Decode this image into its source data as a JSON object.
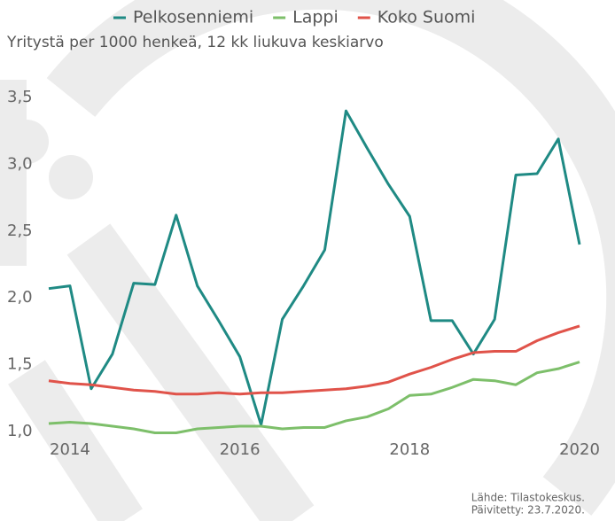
{
  "chart_data": {
    "type": "line",
    "subtitle": "Yritystä per 1000 henkeä, 12 kk liukuva keskiarvo",
    "source": [
      "Lähde: Tilastokeskus.",
      "Päivitetty: 23.7.2020."
    ],
    "x": [
      2013.75,
      2014,
      2014.25,
      2014.5,
      2014.75,
      2015,
      2015.25,
      2015.5,
      2015.75,
      2016,
      2016.25,
      2016.5,
      2016.75,
      2017,
      2017.25,
      2017.5,
      2017.75,
      2018,
      2018.25,
      2018.5,
      2018.75,
      2019,
      2019.25,
      2019.5,
      2019.75,
      2020
    ],
    "series": [
      {
        "name": "Pelkosenniemi",
        "color": "#1f8a84",
        "values": [
          2.07,
          2.09,
          1.32,
          1.58,
          2.11,
          2.1,
          2.62,
          2.09,
          1.83,
          1.56,
          1.05,
          1.84,
          2.09,
          2.36,
          3.4,
          3.12,
          2.85,
          2.61,
          1.83,
          1.83,
          1.58,
          1.84,
          2.92,
          2.93,
          3.19,
          2.4
        ]
      },
      {
        "name": "Lappi",
        "color": "#7dbf6a",
        "values": [
          1.06,
          1.07,
          1.06,
          1.04,
          1.02,
          0.99,
          0.99,
          1.02,
          1.03,
          1.04,
          1.04,
          1.02,
          1.03,
          1.03,
          1.08,
          1.11,
          1.17,
          1.27,
          1.28,
          1.33,
          1.39,
          1.38,
          1.35,
          1.44,
          1.47,
          1.52
        ]
      },
      {
        "name": "Koko Suomi",
        "color": "#e0534a",
        "values": [
          1.38,
          1.36,
          1.35,
          1.33,
          1.31,
          1.3,
          1.28,
          1.28,
          1.29,
          1.28,
          1.29,
          1.29,
          1.3,
          1.31,
          1.32,
          1.34,
          1.37,
          1.43,
          1.48,
          1.54,
          1.59,
          1.6,
          1.6,
          1.68,
          1.74,
          1.79
        ]
      }
    ],
    "xlim": [
      2013.75,
      2020
    ],
    "xticks": [
      2014,
      2016,
      2018,
      2020
    ],
    "ylim": [
      1.0,
      3.6
    ],
    "yticks": [
      {
        "value": 1.0,
        "label": "1,0"
      },
      {
        "value": 1.5,
        "label": "1,5"
      },
      {
        "value": 2.0,
        "label": "2,0"
      },
      {
        "value": 2.5,
        "label": "2,5"
      },
      {
        "value": 3.0,
        "label": "3,0"
      },
      {
        "value": 3.5,
        "label": "3,5"
      }
    ],
    "legend": "top"
  }
}
